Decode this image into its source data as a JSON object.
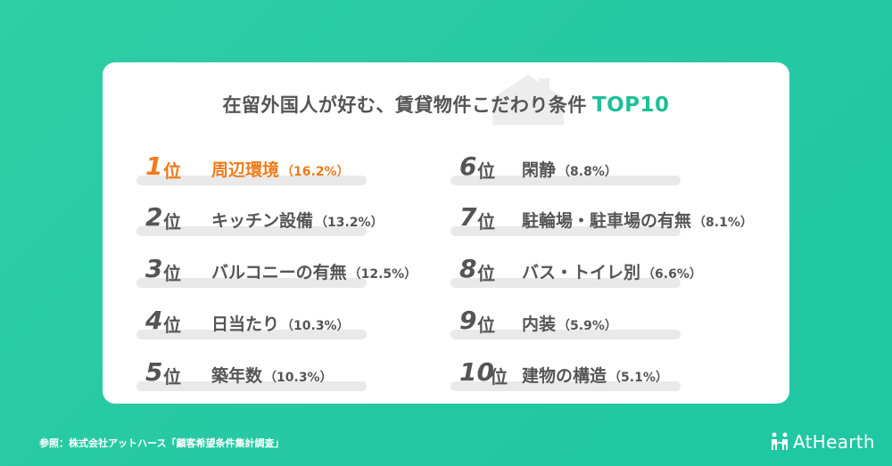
{
  "chart_data": {
    "type": "table",
    "title": "在留外国人が好む、賃貸物件こだわり条件",
    "title_accent": "TOP10",
    "rank_suffix": "位",
    "items": [
      {
        "rank": "1",
        "label": "周辺環境",
        "pct": "（16.2%）",
        "value": 16.2
      },
      {
        "rank": "2",
        "label": "キッチン設備",
        "pct": "（13.2%）",
        "value": 13.2
      },
      {
        "rank": "3",
        "label": "バルコニーの有無",
        "pct": "（12.5%）",
        "value": 12.5
      },
      {
        "rank": "4",
        "label": "日当たり",
        "pct": "（10.3%）",
        "value": 10.3
      },
      {
        "rank": "5",
        "label": "築年数",
        "pct": "（10.3%）",
        "value": 10.3
      },
      {
        "rank": "6",
        "label": "閑静",
        "pct": "（8.8%）",
        "value": 8.8
      },
      {
        "rank": "7",
        "label": "駐輪場・駐車場の有無",
        "pct": "（8.1%）",
        "value": 8.1
      },
      {
        "rank": "8",
        "label": "バス・トイレ別",
        "pct": "（6.6%）",
        "value": 6.6
      },
      {
        "rank": "9",
        "label": "内装",
        "pct": "（5.9%）",
        "value": 5.9
      },
      {
        "rank": "10",
        "label": "建物の構造",
        "pct": "（5.1%）",
        "value": 5.1
      }
    ]
  },
  "footer": {
    "source": "参照：株式会社アットハース「顧客希望条件集計調査」",
    "brand": "AtHearth"
  },
  "colors": {
    "background": "#27c9a3",
    "accent": "#1fbf98",
    "highlight": "#f07c1c",
    "text": "#555555"
  },
  "icons": {
    "house": "house-icon",
    "logo": "people-logo-icon"
  }
}
